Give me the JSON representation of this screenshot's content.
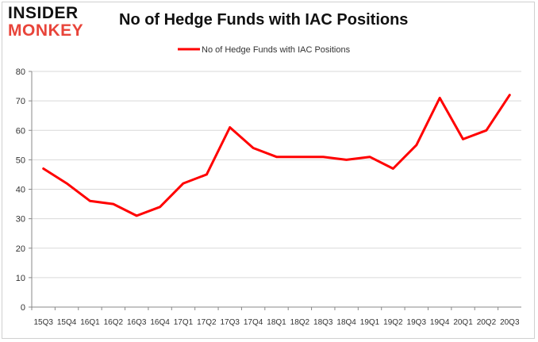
{
  "brand": {
    "logo_top": "INSIDER",
    "logo_bottom": "MONKEY"
  },
  "chart_data": {
    "type": "line",
    "title": "No of Hedge Funds with IAC Positions",
    "xlabel": "",
    "ylabel": "",
    "legend_position": "top-center",
    "grid": true,
    "ylim": [
      0,
      80
    ],
    "yticks": [
      0,
      10,
      20,
      30,
      40,
      50,
      60,
      70,
      80
    ],
    "categories": [
      "15Q3",
      "15Q4",
      "16Q1",
      "16Q2",
      "16Q3",
      "16Q4",
      "17Q1",
      "17Q2",
      "17Q3",
      "17Q4",
      "18Q1",
      "18Q2",
      "18Q3",
      "18Q4",
      "19Q1",
      "19Q2",
      "19Q3",
      "19Q4",
      "20Q1",
      "20Q2",
      "20Q3"
    ],
    "series": [
      {
        "name": "No of Hedge Funds with IAC Positions",
        "color": "#ff0000",
        "values": [
          47,
          42,
          36,
          35,
          31,
          34,
          42,
          45,
          61,
          54,
          51,
          51,
          51,
          50,
          51,
          47,
          55,
          71,
          57,
          60,
          72
        ]
      }
    ]
  }
}
